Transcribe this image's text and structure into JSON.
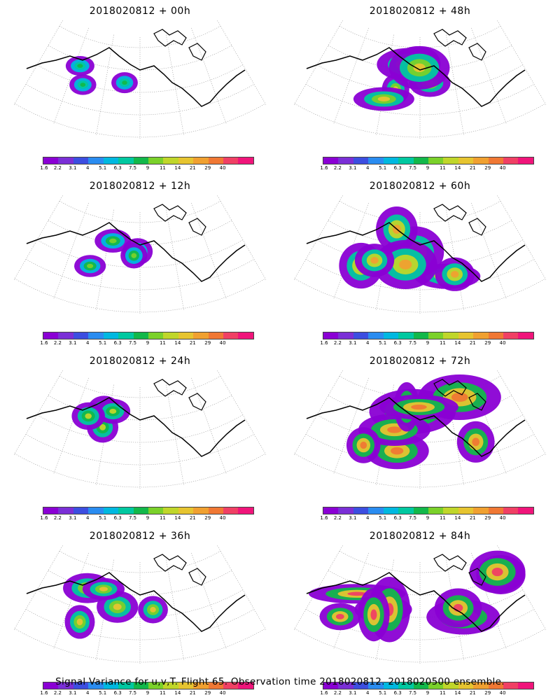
{
  "panels": [
    {
      "title": "2018020812 + 00h",
      "level": 0.05
    },
    {
      "title": "2018020812 + 48h",
      "level": 0.5
    },
    {
      "title": "2018020812 + 12h",
      "level": 0.15
    },
    {
      "title": "2018020812 + 60h",
      "level": 0.65
    },
    {
      "title": "2018020812 + 24h",
      "level": 0.25
    },
    {
      "title": "2018020812 + 72h",
      "level": 0.8
    },
    {
      "title": "2018020812 + 36h",
      "level": 0.38
    },
    {
      "title": "2018020812 + 84h",
      "level": 0.95
    }
  ],
  "colorbar": {
    "colors": [
      "#8a00d4",
      "#7a2fd6",
      "#3c4ee0",
      "#2a8cf0",
      "#00b8e0",
      "#00c8a0",
      "#12b84a",
      "#7ad12a",
      "#c0d62a",
      "#e6c430",
      "#f0a030",
      "#f07834",
      "#f04064",
      "#f0147a"
    ],
    "labels": [
      "1.6",
      "2.2",
      "3.1",
      "4",
      "5.1",
      "6.3",
      "7.5",
      "9",
      "11",
      "14",
      "21",
      "29",
      "40"
    ]
  },
  "caption": "Signal Variance for u,v,T. Flight 65. Observation time 2018020812. 2018020500 ensemble."
}
